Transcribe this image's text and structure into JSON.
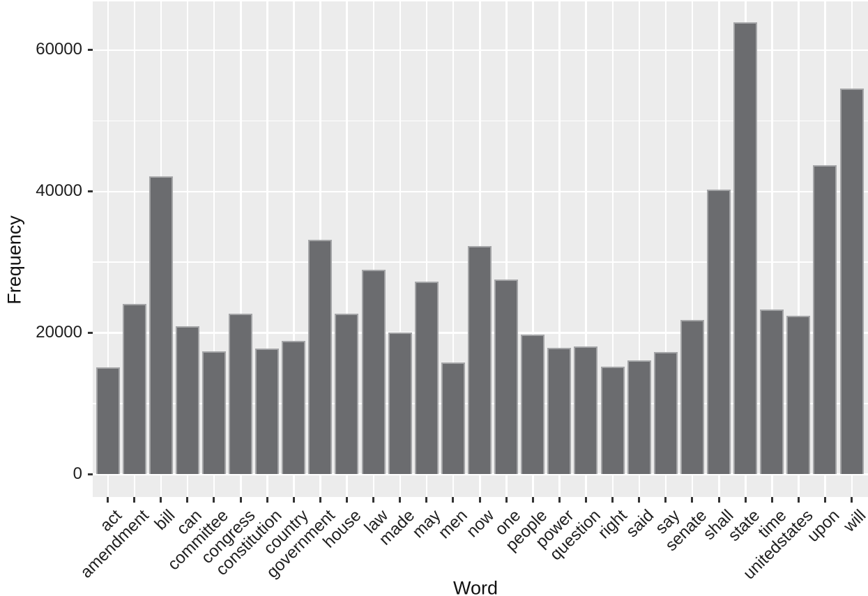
{
  "chart_data": {
    "type": "bar",
    "title": "",
    "xlabel": "Word",
    "ylabel": "Frequency",
    "categories": [
      "act",
      "amendment",
      "bill",
      "can",
      "committee",
      "congress",
      "constitution",
      "country",
      "government",
      "house",
      "law",
      "made",
      "may",
      "men",
      "now",
      "one",
      "people",
      "power",
      "question",
      "right",
      "said",
      "say",
      "senate",
      "shall",
      "state",
      "time",
      "unitedstates",
      "upon",
      "will"
    ],
    "values": [
      15100,
      24100,
      42200,
      21000,
      17400,
      22700,
      17800,
      18900,
      33200,
      22700,
      28900,
      20100,
      27300,
      15800,
      32300,
      27600,
      19800,
      17900,
      18100,
      15200,
      16100,
      17300,
      21800,
      40300,
      63900,
      23300,
      22400,
      43700,
      54600
    ],
    "ylim": [
      0,
      66900
    ],
    "yticks": [
      0,
      20000,
      40000,
      60000
    ],
    "ytick_labels": [
      "0",
      "20000",
      "40000",
      "60000"
    ],
    "yminor_gridlines": [
      10000,
      30000,
      50000
    ],
    "grid": "white major and minor horizontal lines, white vertical lines at each category center, on gray panel",
    "legend": "none",
    "x_tick_label_rotation_deg": 45
  },
  "colors": {
    "bar_fill": "#6b6c6f",
    "bar_border": "#a4a5a7",
    "panel_background": "#ececec",
    "gridline": "#ffffff",
    "axis_text": "#1f1f1f",
    "axis_title": "#111111",
    "tick_mark": "#333333",
    "outer_background": "#ffffff"
  }
}
